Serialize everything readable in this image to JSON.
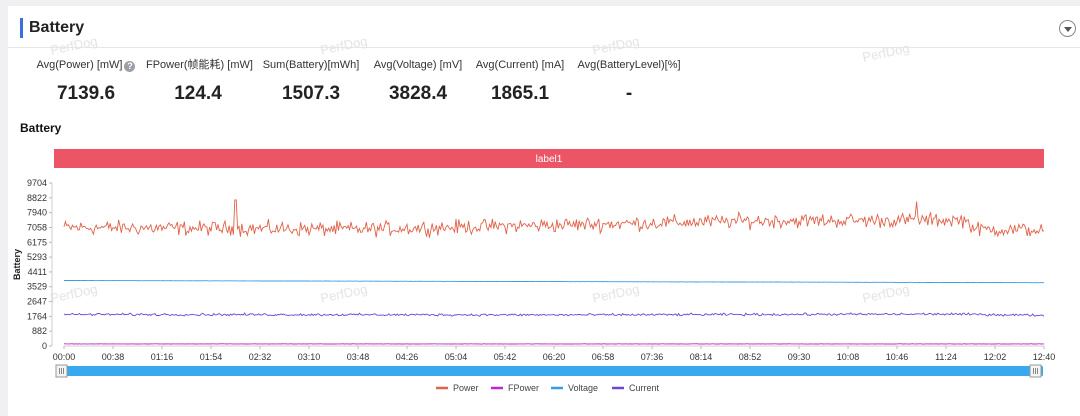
{
  "section": {
    "title": "Battery"
  },
  "watermark_text": "PerfDog",
  "metrics": [
    {
      "label": "Avg(Power) [mW]",
      "value": "7139.6",
      "has_help": true
    },
    {
      "label": "FPower(帧能耗) [mW]",
      "value": "124.4"
    },
    {
      "label": "Sum(Battery)[mWh]",
      "value": "1507.3"
    },
    {
      "label": "Avg(Voltage) [mV]",
      "value": "3828.4"
    },
    {
      "label": "Avg(Current) [mA]",
      "value": "1865.1"
    },
    {
      "label": "Avg(BatteryLevel)[%]",
      "value": "-"
    }
  ],
  "help_icon_glyph": "?",
  "chart_data": {
    "type": "line",
    "title": "Battery",
    "ylabel": "Battery",
    "label_band": {
      "text": "label1",
      "color": "#ec5566"
    },
    "y_ticks": [
      0,
      882,
      1764,
      2647,
      3529,
      4411,
      5293,
      6175,
      7058,
      7940,
      8822,
      9704
    ],
    "ylim": [
      0,
      9704
    ],
    "x_ticks": [
      "00:00",
      "00:38",
      "01:16",
      "01:54",
      "02:32",
      "03:10",
      "03:48",
      "04:26",
      "05:04",
      "05:42",
      "06:20",
      "06:58",
      "07:36",
      "08:14",
      "08:52",
      "09:30",
      "10:08",
      "10:46",
      "11:24",
      "12:02",
      "12:40"
    ],
    "grid": false,
    "legend_position": "bottom",
    "series": [
      {
        "name": "Power",
        "color": "#e0624a",
        "approx_mean": 7140,
        "noise": 420,
        "profile": [
          [
            0,
            7058
          ],
          [
            0.3,
            6950
          ],
          [
            0.5,
            7200
          ],
          [
            0.7,
            7450
          ],
          [
            0.92,
            7500
          ],
          [
            0.93,
            6950
          ],
          [
            1.0,
            6900
          ]
        ],
        "spikes": [
          [
            0.175,
            8700
          ],
          [
            0.87,
            8600
          ]
        ]
      },
      {
        "name": "FPower",
        "color": "#c026c8",
        "approx_mean": 124,
        "noise": 10,
        "profile": [
          [
            0,
            124
          ],
          [
            1,
            124
          ]
        ],
        "spikes": []
      },
      {
        "name": "Voltage",
        "color": "#3a9be8",
        "approx_mean": 3828,
        "noise": 6,
        "profile": [
          [
            0,
            3900
          ],
          [
            1,
            3770
          ]
        ],
        "spikes": []
      },
      {
        "name": "Current",
        "color": "#6f44d6",
        "approx_mean": 1865,
        "noise": 70,
        "profile": [
          [
            0,
            1880
          ],
          [
            0.5,
            1850
          ],
          [
            0.9,
            1900
          ],
          [
            1,
            1830
          ]
        ],
        "spikes": []
      }
    ]
  }
}
